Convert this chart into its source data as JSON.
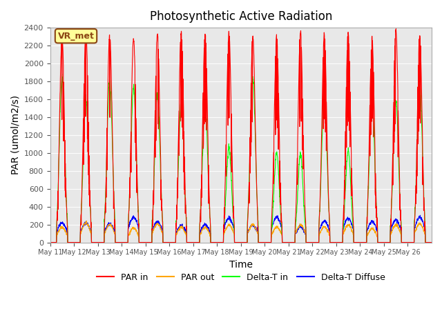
{
  "title": "Photosynthetic Active Radiation",
  "ylabel": "PAR (umol/m2/s)",
  "xlabel": "Time",
  "ylim": [
    0,
    2400
  ],
  "yticks": [
    0,
    200,
    400,
    600,
    800,
    1000,
    1200,
    1400,
    1600,
    1800,
    2000,
    2200,
    2400
  ],
  "x_tick_labels": [
    "May 11",
    "May 12",
    "May 13",
    "May 14",
    "May 15",
    "May 16",
    "May 17",
    "May 18",
    "May 19",
    "May 20",
    "May 21",
    "May 22",
    "May 23",
    "May 24",
    "May 25",
    "May 26"
  ],
  "legend_labels": [
    "PAR in",
    "PAR out",
    "Delta-T in",
    "Delta-T Diffuse"
  ],
  "legend_colors": [
    "red",
    "orange",
    "lime",
    "blue"
  ],
  "annotation_text": "VR_met",
  "bg_color": "#e8e8e8",
  "n_days": 16,
  "par_in_peak": 2350,
  "par_out_peak": 170,
  "delta_t_in_peak": 1750,
  "delta_t_diffuse_peak": 200
}
